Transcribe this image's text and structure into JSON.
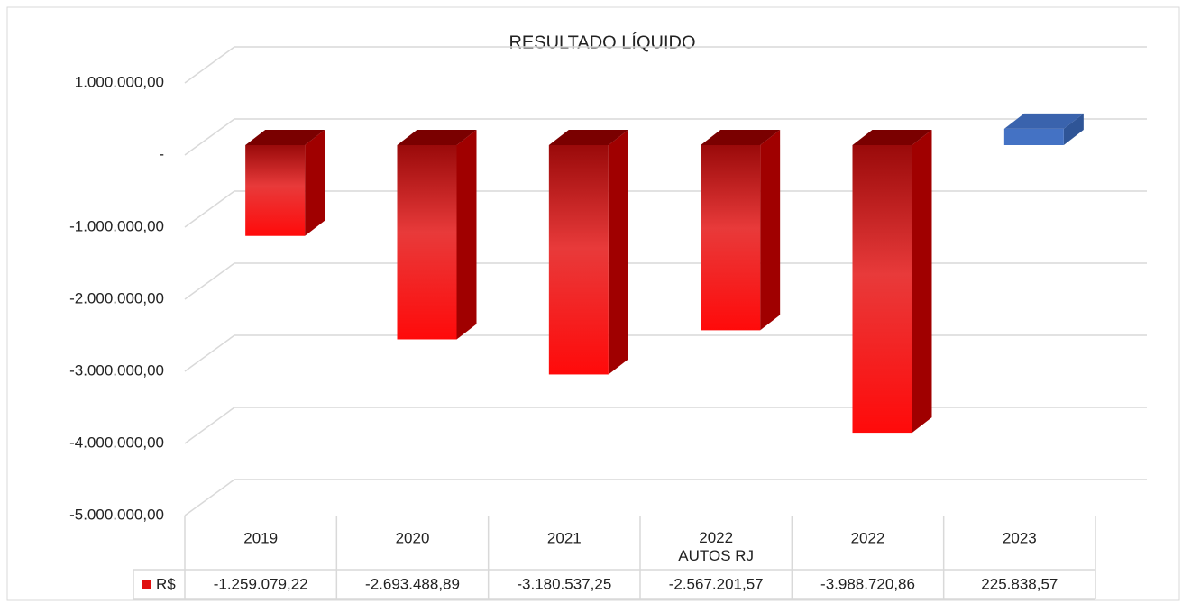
{
  "chart_data": {
    "type": "bar",
    "title": "RESULTADO LÍQUIDO",
    "categories": [
      "2019",
      "2020",
      "2021",
      "2022\nAUTOS RJ",
      "2022",
      "2023"
    ],
    "series": [
      {
        "name": "R$",
        "color": "#e01010",
        "colors": [
          "#e01010",
          "#e01010",
          "#e01010",
          "#e01010",
          "#e01010",
          "#4472c4"
        ],
        "values": [
          -1259079.22,
          -2693488.89,
          -3180537.25,
          -2567201.57,
          -3988720.86,
          225838.57
        ],
        "value_labels": [
          "-1.259.079,22",
          "-2.693.488,89",
          "-3.180.537,25",
          "-2.567.201,57",
          "-3.988.720,86",
          "225.838,57"
        ]
      }
    ],
    "ylim": [
      -5000000,
      1000000
    ],
    "yticks": [
      {
        "value": 1000000,
        "label": "1.000.000,00"
      },
      {
        "value": 0,
        "label": "-"
      },
      {
        "value": -1000000,
        "label": "-1.000.000,00"
      },
      {
        "value": -2000000,
        "label": "-2.000.000,00"
      },
      {
        "value": -3000000,
        "label": "-3.000.000,00"
      },
      {
        "value": -4000000,
        "label": "-4.000.000,00"
      },
      {
        "value": -5000000,
        "label": "-5.000.000,00"
      }
    ],
    "grid": true
  }
}
